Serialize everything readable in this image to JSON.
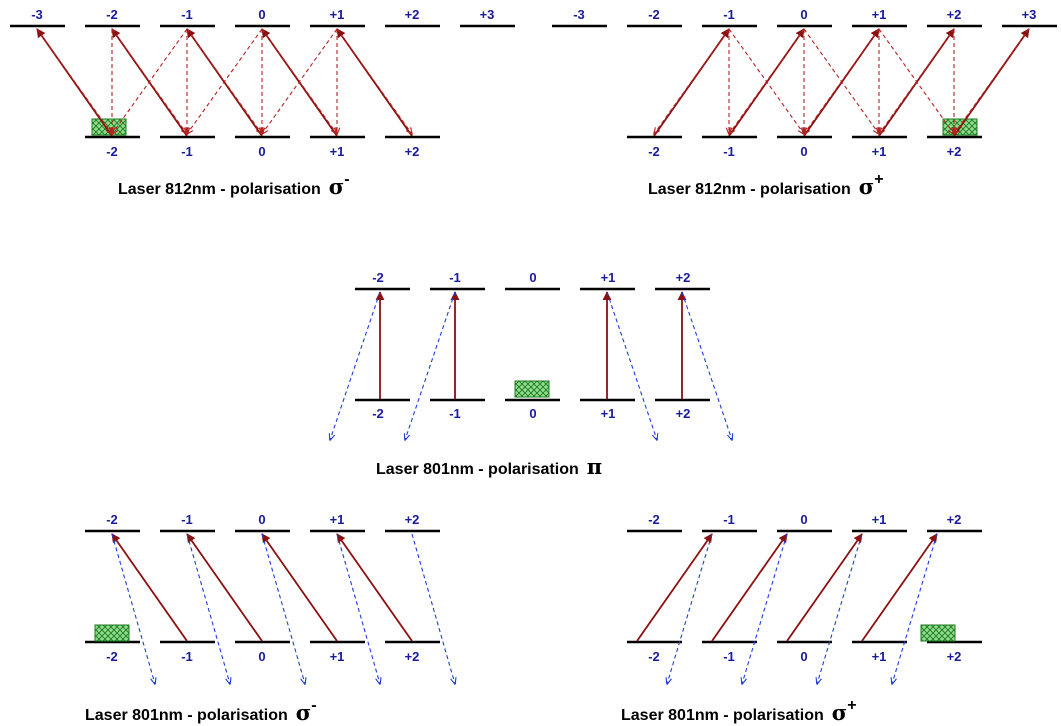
{
  "colors": {
    "level": "#000000",
    "level_label": "#1a1a9c",
    "pump": "#8b1010",
    "decay_812": "#b22222",
    "decay_801": "#1f3fd6",
    "dark_state_fill": "#7fd07f",
    "dark_state_stroke": "#1c7a1c"
  },
  "diagrams": {
    "d812_minus": {
      "caption": "Laser 812nm - polarisation",
      "symbol": "σ",
      "superscript": "-",
      "upper_labels": [
        "-3",
        "-2",
        "-1",
        "0",
        "+1",
        "+2",
        "+3"
      ],
      "lower_labels": [
        "-2",
        "-1",
        "0",
        "+1",
        "+2"
      ]
    },
    "d812_plus": {
      "caption": "Laser 812nm - polarisation",
      "symbol": "σ",
      "superscript": "+",
      "upper_labels": [
        "-3",
        "-2",
        "-1",
        "0",
        "+1",
        "+2",
        "+3"
      ],
      "lower_labels": [
        "-2",
        "-1",
        "0",
        "+1",
        "+2"
      ]
    },
    "d801_pi": {
      "caption": "Laser 801nm - polarisation",
      "symbol": "π",
      "superscript": "",
      "upper_labels": [
        "-2",
        "-1",
        "0",
        "+1",
        "+2"
      ],
      "lower_labels": [
        "-2",
        "-1",
        "0",
        "+1",
        "+2"
      ]
    },
    "d801_minus": {
      "caption": "Laser 801nm - polarisation",
      "symbol": "σ",
      "superscript": "-",
      "upper_labels": [
        "-2",
        "-1",
        "0",
        "+1",
        "+2"
      ],
      "lower_labels": [
        "-2",
        "-1",
        "0",
        "+1",
        "+2"
      ]
    },
    "d801_plus": {
      "caption": "Laser 801nm - polarisation",
      "symbol": "σ",
      "superscript": "+",
      "upper_labels": [
        "-2",
        "-1",
        "0",
        "+1",
        "+2"
      ],
      "lower_labels": [
        "-2",
        "-1",
        "0",
        "+1",
        "+2"
      ]
    }
  }
}
